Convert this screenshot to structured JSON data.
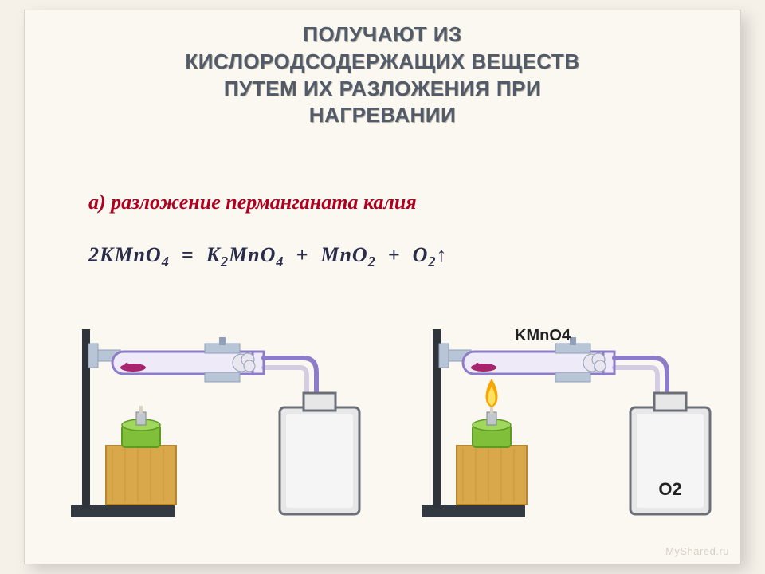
{
  "title_lines": [
    "ПОЛУЧАЮТ ИЗ",
    "КИСЛОРОДСОДЕРЖАЩИХ ВЕЩЕСТВ",
    "ПУТЕМ ИХ РАЗЛОЖЕНИЯ ПРИ",
    "НАГРЕВАНИИ"
  ],
  "subheading": "а) разложение перманганата калия",
  "equation_html": "2KMnO<sub>4</sub>&nbsp;&nbsp;=&nbsp;&nbsp;K<sub>2</sub>MnO<sub>4</sub>&nbsp;&nbsp;+&nbsp;&nbsp;MnO<sub>2</sub>&nbsp;&nbsp;+&nbsp;&nbsp;O<sub>2</sub>↑",
  "watermark": "MyShared.ru",
  "apparatus": {
    "label_kmno4": "KMnO4",
    "label_o2": "O2",
    "flame_on_right": true,
    "colors": {
      "stand_base": "#333940",
      "stand_rod": "#2f343a",
      "clamp": "#b8c5d6",
      "clamp_shadow": "#8fa0b8",
      "wood_block": "#d8a84a",
      "wood_block_dark": "#b8862e",
      "burner_body": "#7fbf3a",
      "burner_shadow": "#5e9a22",
      "burner_top": "#9fd85c",
      "flame_outer": "#f7a500",
      "flame_inner": "#ffe063",
      "tube_outline": "#8d7cc8",
      "tube_fill": "#efeaf7",
      "crystals": "#a8246e",
      "cotton": "#e9e6ef",
      "bottle_outline": "#6b6f78",
      "bottle_fill": "#e7e7e7",
      "bottle_inner": "#ffffff",
      "text_label": "#222222"
    },
    "layout": {
      "scene_width": 420,
      "scene_height": 300,
      "gap": 20
    }
  }
}
